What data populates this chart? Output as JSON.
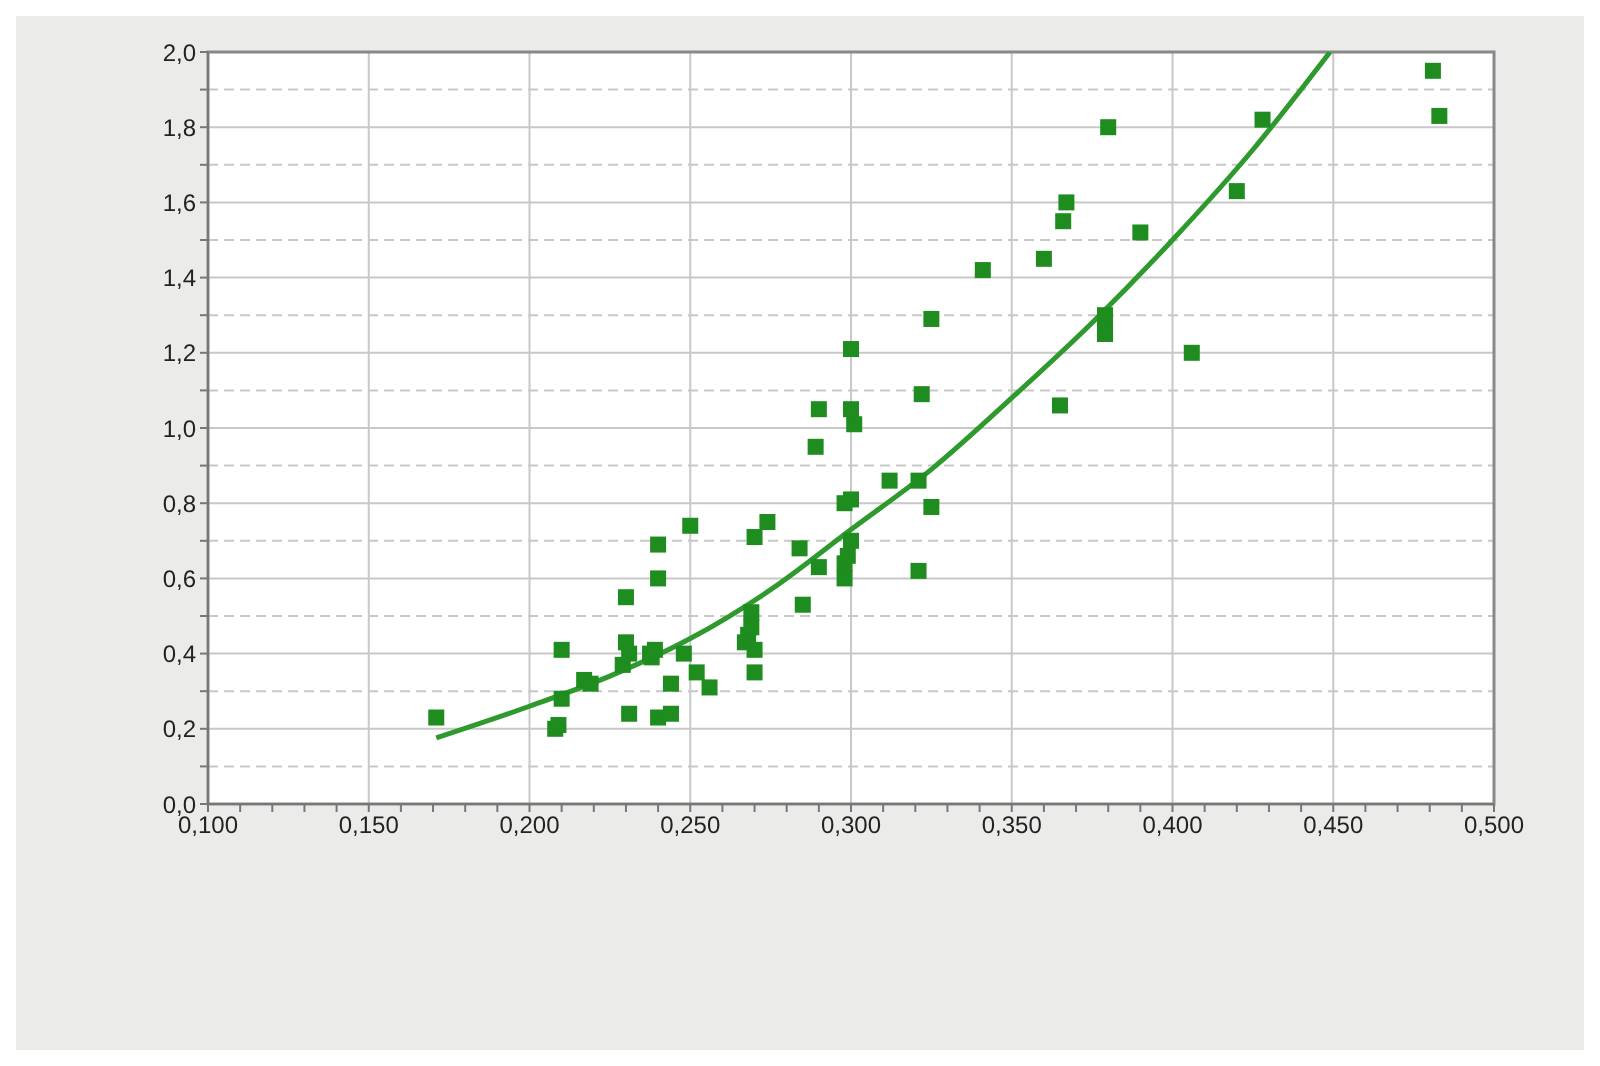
{
  "chart_data": {
    "type": "scatter",
    "marker": "square",
    "grid": true,
    "xlim": [
      0.1,
      0.5
    ],
    "xticks": [
      {
        "value": 0.1,
        "label": "0,100"
      },
      {
        "value": 0.11,
        "label": null
      },
      {
        "value": 0.12,
        "label": null
      },
      {
        "value": 0.13,
        "label": null
      },
      {
        "value": 0.14,
        "label": null
      },
      {
        "value": 0.15,
        "label": "0,150"
      },
      {
        "value": 0.16,
        "label": null
      },
      {
        "value": 0.17,
        "label": null
      },
      {
        "value": 0.18,
        "label": null
      },
      {
        "value": 0.19,
        "label": null
      },
      {
        "value": 0.2,
        "label": "0,200"
      },
      {
        "value": 0.21,
        "label": null
      },
      {
        "value": 0.22,
        "label": null
      },
      {
        "value": 0.23,
        "label": null
      },
      {
        "value": 0.24,
        "label": null
      },
      {
        "value": 0.25,
        "label": "0,250"
      },
      {
        "value": 0.26,
        "label": null
      },
      {
        "value": 0.27,
        "label": null
      },
      {
        "value": 0.28,
        "label": null
      },
      {
        "value": 0.29,
        "label": null
      },
      {
        "value": 0.3,
        "label": "0,300"
      },
      {
        "value": 0.31,
        "label": null
      },
      {
        "value": 0.32,
        "label": null
      },
      {
        "value": 0.33,
        "label": null
      },
      {
        "value": 0.34,
        "label": null
      },
      {
        "value": 0.35,
        "label": "0,350"
      },
      {
        "value": 0.36,
        "label": null
      },
      {
        "value": 0.37,
        "label": null
      },
      {
        "value": 0.38,
        "label": null
      },
      {
        "value": 0.39,
        "label": null
      },
      {
        "value": 0.4,
        "label": "0,400"
      },
      {
        "value": 0.41,
        "label": null
      },
      {
        "value": 0.42,
        "label": null
      },
      {
        "value": 0.43,
        "label": null
      },
      {
        "value": 0.44,
        "label": null
      },
      {
        "value": 0.45,
        "label": "0,450"
      },
      {
        "value": 0.46,
        "label": null
      },
      {
        "value": 0.47,
        "label": null
      },
      {
        "value": 0.48,
        "label": null
      },
      {
        "value": 0.49,
        "label": null
      },
      {
        "value": 0.5,
        "label": "0,500"
      }
    ],
    "ylim": [
      0,
      2
    ],
    "yticks": [
      {
        "value": 0,
        "label": "0,0"
      },
      {
        "value": 0.1,
        "label": null
      },
      {
        "value": 0.2,
        "label": "0,2"
      },
      {
        "value": 0.3,
        "label": null
      },
      {
        "value": 0.4,
        "label": "0,4"
      },
      {
        "value": 0.5,
        "label": null
      },
      {
        "value": 0.6,
        "label": "0,6"
      },
      {
        "value": 0.7,
        "label": null
      },
      {
        "value": 0.8,
        "label": "0,8"
      },
      {
        "value": 0.9,
        "label": null
      },
      {
        "value": 1.0,
        "label": "1,0"
      },
      {
        "value": 1.1,
        "label": null
      },
      {
        "value": 1.2,
        "label": "1,2"
      },
      {
        "value": 1.3,
        "label": null
      },
      {
        "value": 1.4,
        "label": "1,4"
      },
      {
        "value": 1.5,
        "label": null
      },
      {
        "value": 1.6,
        "label": "1,6"
      },
      {
        "value": 1.7,
        "label": null
      },
      {
        "value": 1.8,
        "label": "1,8"
      },
      {
        "value": 1.9,
        "label": null
      },
      {
        "value": 2.0,
        "label": "2,0"
      }
    ],
    "series": [
      {
        "color": "#1e8c1e",
        "x": [
          0.171,
          0.21,
          0.21,
          0.208,
          0.209,
          0.217,
          0.219,
          0.229,
          0.23,
          0.23,
          0.231,
          0.231,
          0.2375,
          0.238,
          0.239,
          0.24,
          0.24,
          0.24,
          0.244,
          0.244,
          0.248,
          0.25,
          0.252,
          0.256,
          0.267,
          0.268,
          0.269,
          0.269,
          0.27,
          0.27,
          0.27,
          0.274,
          0.284,
          0.285,
          0.289,
          0.29,
          0.29,
          0.298,
          0.298,
          0.298,
          0.299,
          0.3,
          0.3,
          0.3,
          0.3,
          0.301,
          0.312,
          0.321,
          0.321,
          0.322,
          0.325,
          0.325,
          0.341,
          0.36,
          0.365,
          0.366,
          0.367,
          0.38,
          0.379,
          0.379,
          0.379,
          0.39,
          0.406,
          0.42,
          0.428,
          0.481,
          0.483
        ],
        "values": [
          0.23,
          0.41,
          0.28,
          0.2,
          0.21,
          0.33,
          0.32,
          0.37,
          0.55,
          0.43,
          0.4,
          0.24,
          0.4,
          0.39,
          0.41,
          0.69,
          0.6,
          0.23,
          0.32,
          0.24,
          0.4,
          0.74,
          0.35,
          0.31,
          0.43,
          0.45,
          0.47,
          0.51,
          0.71,
          0.41,
          0.35,
          0.75,
          0.68,
          0.53,
          0.95,
          1.05,
          0.63,
          0.8,
          0.6,
          0.64,
          0.66,
          0.81,
          0.7,
          1.21,
          1.05,
          1.01,
          0.86,
          0.86,
          0.62,
          1.09,
          0.79,
          1.29,
          1.42,
          1.45,
          1.06,
          1.55,
          1.6,
          1.8,
          1.3,
          1.26,
          1.25,
          1.52,
          1.2,
          1.63,
          1.82,
          1.95,
          1.83
        ]
      },
      {
        "type": "line",
        "color": "#2e9a2e",
        "marker": "none",
        "x": [
          0.171,
          0.2,
          0.225,
          0.25,
          0.275,
          0.3,
          0.325,
          0.35,
          0.375,
          0.4,
          0.425,
          0.449
        ],
        "values": [
          0.176,
          0.26,
          0.34,
          0.44,
          0.57,
          0.73,
          0.89,
          1.08,
          1.28,
          1.5,
          1.74,
          2.0
        ]
      }
    ]
  }
}
